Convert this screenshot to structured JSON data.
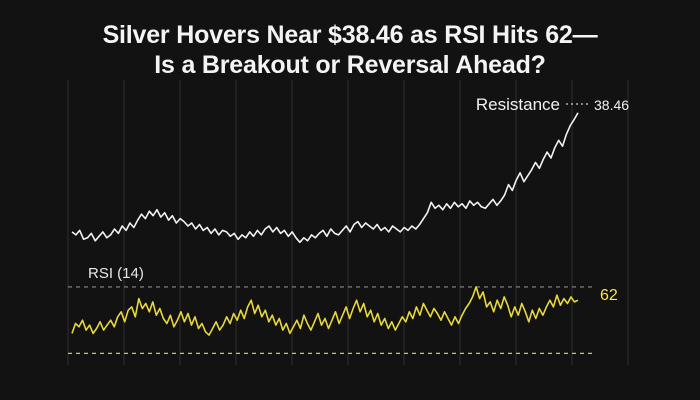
{
  "title_line1": "Silver Hovers Near $38.46 as RSI Hits 62—",
  "title_line2": "Is a Breakout or Reversal Ahead?",
  "chart_data": [
    {
      "type": "line",
      "name": "price",
      "series": [
        {
          "name": "",
          "values": [
            30.4,
            30.2,
            30.5,
            29.9,
            30.0,
            30.3,
            29.8,
            30.1,
            30.4,
            30.0,
            30.2,
            30.6,
            30.3,
            30.8,
            30.5,
            31.0,
            30.7,
            31.2,
            31.6,
            31.3,
            31.8,
            31.5,
            31.9,
            31.4,
            31.7,
            31.2,
            31.5,
            31.0,
            31.3,
            31.1,
            30.8,
            31.0,
            30.6,
            30.9,
            30.5,
            30.7,
            30.3,
            30.6,
            30.2,
            30.5,
            30.4,
            30.1,
            30.3,
            29.9,
            30.2,
            30.0,
            30.4,
            30.1,
            30.5,
            30.2,
            30.6,
            30.8,
            30.4,
            30.7,
            30.3,
            30.5,
            30.1,
            30.4,
            30.0,
            29.7,
            30.0,
            29.8,
            30.2,
            30.0,
            30.3,
            30.5,
            30.1,
            30.6,
            30.3,
            30.2,
            30.5,
            30.8,
            30.4,
            30.9,
            31.1,
            30.7,
            31.0,
            30.8,
            30.6,
            30.9,
            30.5,
            30.7,
            30.4,
            30.8,
            30.6,
            30.4,
            30.7,
            30.5,
            30.8,
            30.6,
            30.9,
            31.3,
            31.7,
            32.4,
            32.0,
            32.2,
            31.9,
            32.3,
            32.0,
            32.4,
            32.1,
            32.3,
            32.0,
            32.5,
            32.2,
            32.4,
            32.1,
            32.0,
            32.3,
            32.6,
            32.2,
            32.5,
            32.9,
            33.6,
            33.2,
            33.9,
            34.4,
            33.8,
            34.2,
            34.6,
            35.1,
            34.7,
            35.3,
            35.8,
            35.4,
            36.1,
            36.6,
            36.2,
            37.0,
            37.6,
            38.0,
            38.46
          ]
        }
      ],
      "annotations": [
        {
          "label": "Resistance",
          "value": "38.46"
        }
      ],
      "ylim": [
        28.5,
        40.0
      ]
    },
    {
      "type": "line",
      "name": "rsi",
      "label": "RSI (14)",
      "series": [
        {
          "name": "",
          "values": [
            42,
            48,
            46,
            50,
            44,
            47,
            42,
            45,
            49,
            44,
            47,
            50,
            46,
            52,
            55,
            49,
            56,
            58,
            52,
            63,
            57,
            60,
            55,
            61,
            53,
            57,
            51,
            48,
            53,
            46,
            50,
            55,
            49,
            54,
            47,
            52,
            45,
            48,
            43,
            41,
            45,
            49,
            44,
            47,
            52,
            48,
            54,
            50,
            56,
            51,
            58,
            62,
            54,
            59,
            52,
            56,
            49,
            53,
            47,
            51,
            44,
            48,
            42,
            46,
            50,
            45,
            53,
            48,
            44,
            49,
            54,
            47,
            51,
            45,
            50,
            55,
            48,
            53,
            58,
            51,
            57,
            62,
            55,
            60,
            52,
            56,
            49,
            54,
            47,
            51,
            45,
            49,
            44,
            48,
            52,
            49,
            55,
            51,
            58,
            53,
            60,
            56,
            52,
            57,
            54,
            50,
            55,
            51,
            47,
            52,
            48,
            53,
            57,
            60,
            64,
            70,
            63,
            67,
            58,
            61,
            55,
            62,
            57,
            64,
            59,
            52,
            58,
            53,
            60,
            55,
            49,
            56,
            51,
            57,
            53,
            58,
            62,
            58,
            65,
            59,
            63,
            60,
            64,
            61,
            62
          ]
        }
      ],
      "reference_lines": [
        70,
        30
      ],
      "annotations": [
        {
          "value": "62"
        }
      ],
      "ylim": [
        20,
        85
      ]
    }
  ],
  "colors": {
    "price": "#f2f2f2",
    "rsi": "#e8d83a",
    "rsi_label": "#ffe14a",
    "grid": "#2e2e2e",
    "dash": "#8a8a8a",
    "rsi_dash": "#d9c63a"
  }
}
